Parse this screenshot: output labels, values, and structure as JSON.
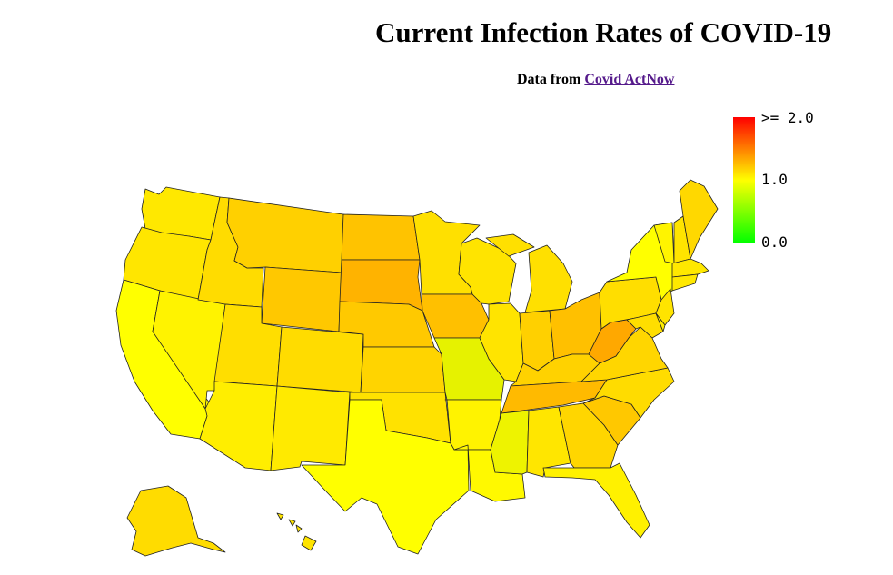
{
  "title": "Current Infection Rates of COVID-19",
  "subtitle": {
    "prefix": "Data from",
    "link_text": "Covid ActNow"
  },
  "legend": {
    "labels": [
      ">= 2.0",
      "1.0",
      "0.0"
    ],
    "colors": {
      "high": "#ff0000",
      "mid": "#ffff00",
      "low": "#00ff00"
    }
  },
  "colors": {
    "WA": "#ffe800",
    "OR": "#ffe600",
    "CA": "#ffff00",
    "NV": "#fff300",
    "ID": "#ffdc00",
    "MT": "#ffd000",
    "WY": "#ffc800",
    "UT": "#ffde00",
    "AZ": "#ffee00",
    "CO": "#ffdc00",
    "NM": "#ffea00",
    "ND": "#ffc300",
    "SD": "#ffb300",
    "NE": "#ffc900",
    "KS": "#ffd400",
    "OK": "#ffe200",
    "TX": "#ffff00",
    "MN": "#ffe000",
    "IA": "#ffc000",
    "MO": "#e6f200",
    "AR": "#fff300",
    "LA": "#fff900",
    "WI": "#ffe400",
    "IL": "#ffe400",
    "MI": "#ffe000",
    "IN": "#ffd000",
    "OH": "#ffc000",
    "KY": "#ffd200",
    "TN": "#ffba00",
    "MS": "#eef300",
    "AL": "#ffe600",
    "GA": "#ffd600",
    "FL": "#fff100",
    "SC": "#ffc800",
    "NC": "#ffdc00",
    "VA": "#ffd600",
    "WV": "#ffa800",
    "PA": "#ffde00",
    "NY": "#ffff00",
    "VT": "#fff400",
    "NH": "#ffe400",
    "ME": "#ffd800",
    "MA": "#ffe800",
    "CT": "#ffe800",
    "NJ": "#ffe400",
    "MD": "#ffde00",
    "DE": "#ffee00",
    "AK": "#ffdc00",
    "HI": "#ffe400"
  }
}
